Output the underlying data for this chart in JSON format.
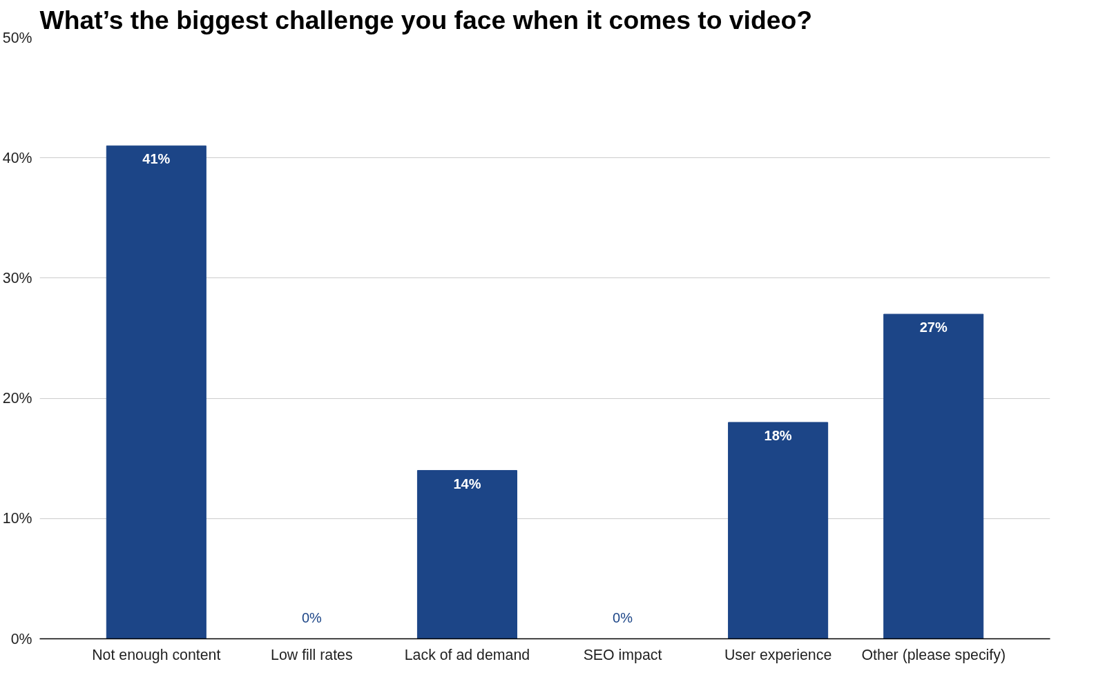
{
  "chart_data": {
    "type": "bar",
    "title": "What’s the biggest challenge you face when it comes to video?",
    "categories": [
      "Not enough content",
      "Low fill rates",
      "Lack of ad demand",
      "SEO impact",
      "User experience",
      "Other (please specify)"
    ],
    "values": [
      41,
      0,
      14,
      0,
      18,
      27
    ],
    "value_labels": [
      "41%",
      "0%",
      "14%",
      "0%",
      "18%",
      "27%"
    ],
    "color": "#1c4587",
    "ylim": [
      0,
      50
    ],
    "yticks": [
      {
        "value": 0,
        "label": "0%"
      },
      {
        "value": 10,
        "label": "10%"
      },
      {
        "value": 20,
        "label": "20%"
      },
      {
        "value": 30,
        "label": "30%"
      },
      {
        "value": 40,
        "label": "40%"
      },
      {
        "value": 50,
        "label": "50%"
      }
    ],
    "grid": "y"
  }
}
